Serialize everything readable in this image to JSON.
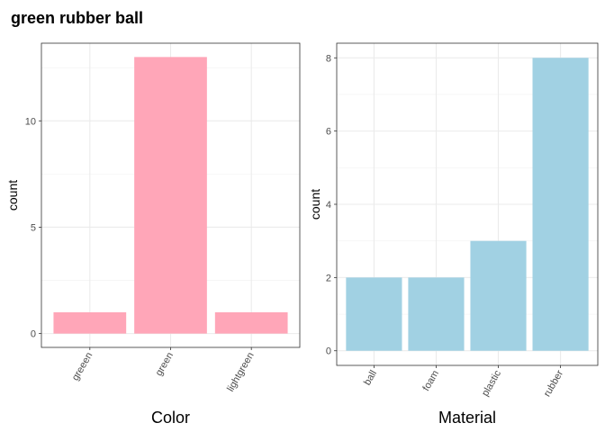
{
  "title": "green rubber ball",
  "chart_data": [
    {
      "type": "bar",
      "xlabel": "Color",
      "ylabel": "count",
      "categories": [
        "greeen",
        "green",
        "lightgreen"
      ],
      "values": [
        1,
        13,
        1
      ],
      "yticks": [
        0,
        5,
        10
      ],
      "ylim": [
        -0.65,
        13.65
      ],
      "color": "#FFA6B8",
      "grid": true
    },
    {
      "type": "bar",
      "xlabel": "Material",
      "ylabel": "count",
      "categories": [
        "ball",
        "foam",
        "plastic",
        "rubber"
      ],
      "values": [
        2,
        2,
        3,
        8
      ],
      "yticks": [
        0,
        2,
        4,
        6,
        8
      ],
      "ylim": [
        -0.4,
        8.4
      ],
      "color": "#A1D1E3",
      "grid": true
    }
  ]
}
